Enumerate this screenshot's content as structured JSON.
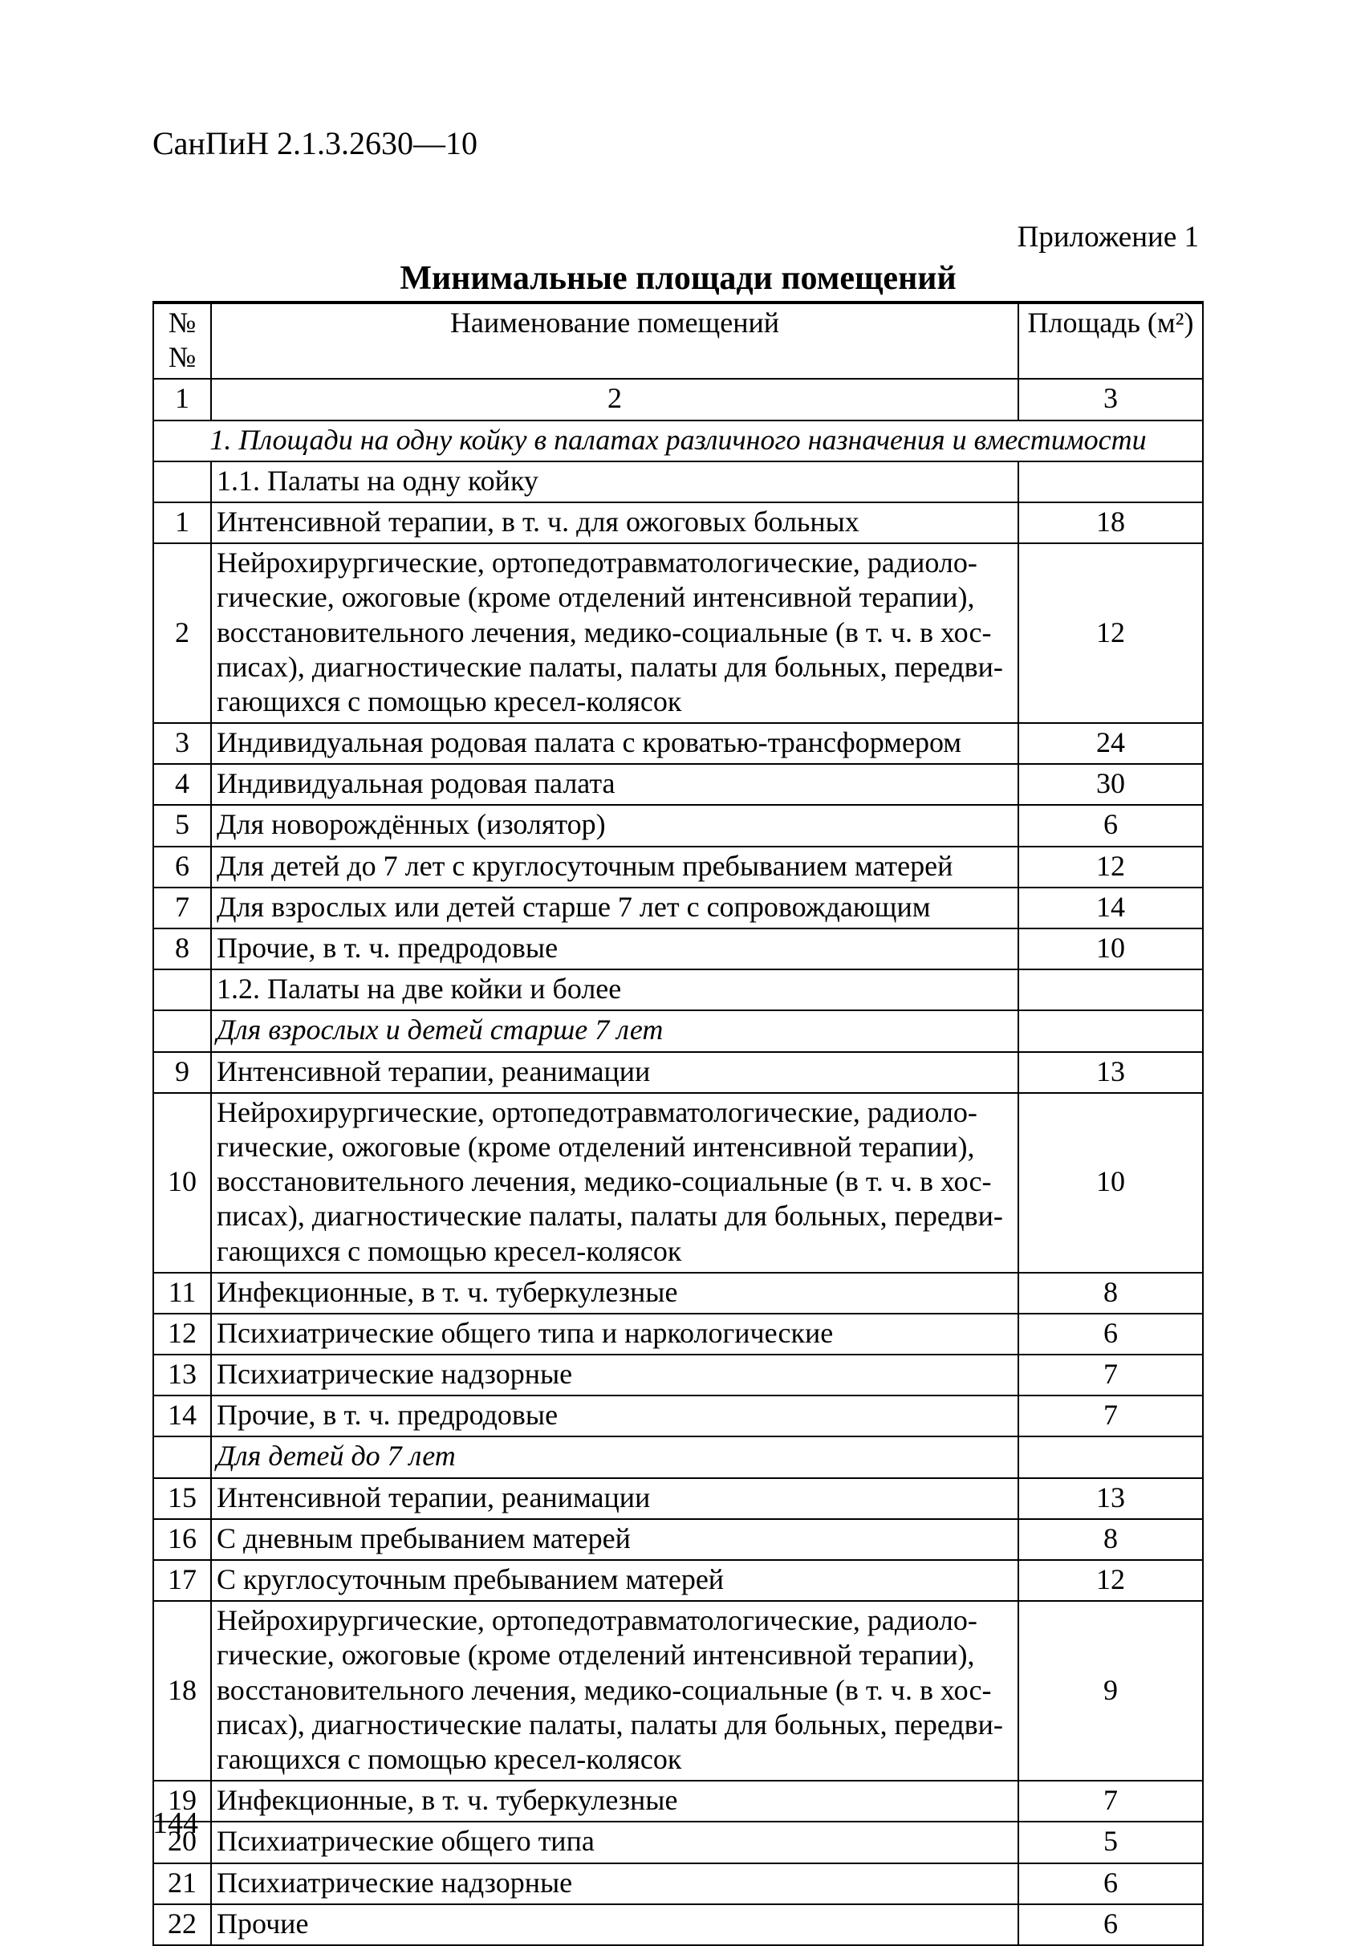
{
  "doc_code": "СанПиН 2.1.3.2630—10",
  "appendix_label": "Приложение 1",
  "title": "Минимальные площади помещений",
  "headers": {
    "num": "№ №",
    "name": "Наименование помещений",
    "area": "Площадь (м²)"
  },
  "col_index": {
    "c1": "1",
    "c2": "2",
    "c3": "3"
  },
  "sections": {
    "s1": "1. Площади на одну койку в палатах различного назначения и вместимости",
    "s1_1": "1.1. Палаты на одну койку",
    "s1_2": "1.2. Палаты на две койки и более",
    "adults7": "Для взрослых и детей старше 7 лет",
    "children7": "Для детей до 7 лет"
  },
  "rows": {
    "r1": {
      "n": "1",
      "name": "Интенсивной терапии, в т. ч. для ожоговых больных",
      "area": "18"
    },
    "r2": {
      "n": "2",
      "name": "Нейрохирургические, ортопедотравматологические, радиоло­гические, ожоговые (кроме отделений интенсивной терапии), восстановительного лечения, медико-социальные (в т. ч. в хос­писах), диагностические палаты, палаты для больных, передви­гающихся с помощью кресел-колясок",
      "area": "12"
    },
    "r3": {
      "n": "3",
      "name": "Индивидуальная родовая палата с кроватью-трансформером",
      "area": "24"
    },
    "r4": {
      "n": "4",
      "name": "Индивидуальная родовая палата",
      "area": "30"
    },
    "r5": {
      "n": "5",
      "name": "Для новорождённых  (изолятор)",
      "area": "6"
    },
    "r6": {
      "n": "6",
      "name": "Для детей до 7 лет с круглосуточным пребыванием матерей",
      "area": "12"
    },
    "r7": {
      "n": "7",
      "name": "Для взрослых или детей старше 7 лет с сопровождающим",
      "area": "14"
    },
    "r8": {
      "n": "8",
      "name": "Прочие, в т. ч. предродовые",
      "area": "10"
    },
    "r9": {
      "n": "9",
      "name": "Интенсивной терапии, реанимации",
      "area": "13"
    },
    "r10": {
      "n": "10",
      "name": "Нейрохирургические, ортопедотравматологические, радиоло­гические, ожоговые  (кроме отделений интенсивной терапии), восстановительного лечения, медико-социальные (в т. ч. в хос­писах), диагностические палаты, палаты для больных, передви­гающихся с помощью кресел-колясок",
      "area": "10"
    },
    "r11": {
      "n": "11",
      "name": "Инфекционные, в т. ч. туберкулезные",
      "area": "8"
    },
    "r12": {
      "n": "12",
      "name": "Психиатрические общего типа и наркологические",
      "area": "6"
    },
    "r13": {
      "n": "13",
      "name": "Психиатрические надзорные",
      "area": "7"
    },
    "r14": {
      "n": "14",
      "name": "Прочие, в т. ч. предродовые",
      "area": "7"
    },
    "r15": {
      "n": "15",
      "name": "Интенсивной терапии, реанимации",
      "area": "13"
    },
    "r16": {
      "n": "16",
      "name": "С дневным пребыванием матерей",
      "area": "8"
    },
    "r17": {
      "n": "17",
      "name": "С круглосуточным пребыванием матерей",
      "area": "12"
    },
    "r18": {
      "n": "18",
      "name": "Нейрохирургические, ортопедотравматологические, радиоло­гические, ожоговые  (кроме отделений интенсивной терапии), восстановительного лечения, медико-социальные (в т. ч. в хос­писах), диагностические палаты, палаты для больных, передви­гающихся с помощью кресел-колясок",
      "area": "9"
    },
    "r19": {
      "n": "19",
      "name": "Инфекционные, в т. ч. туберкулезные",
      "area": "7"
    },
    "r20": {
      "n": "20",
      "name": "Психиатрические общего типа",
      "area": "5"
    },
    "r21": {
      "n": "21",
      "name": "Психиатрические надзорные",
      "area": "6"
    },
    "r22": {
      "n": "22",
      "name": "Прочие",
      "area": "6"
    }
  },
  "page_number": "144"
}
